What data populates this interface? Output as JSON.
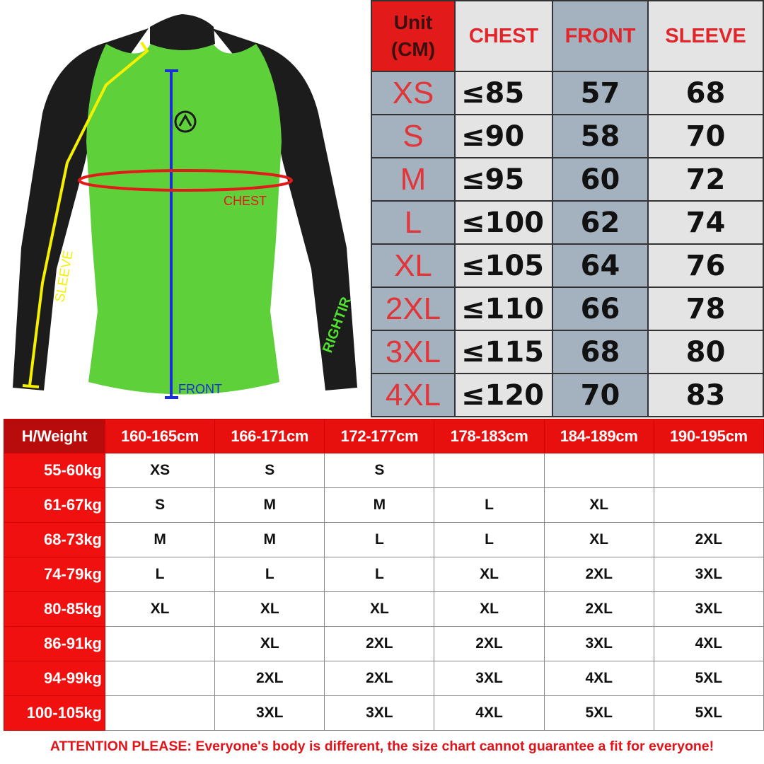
{
  "colors": {
    "red": "#e21a1a",
    "header_gray": "#a3b2be",
    "light_gray": "#e4e4e4",
    "shirt_green": "#5ed13a",
    "shirt_black": "#1c1c1c",
    "sleeve_line": "#f5f000",
    "front_line": "#1a2fd6",
    "chest_line": "#e21a1a"
  },
  "illustration": {
    "chest_label": "CHEST",
    "front_label": "FRONT",
    "sleeve_label": "SLEEVE",
    "logo_text": "RIGHTIR"
  },
  "size_table": {
    "headers": {
      "unit": "Unit (CM)",
      "chest": "CHEST",
      "front": "FRONT",
      "sleeve": "SLEEVE"
    },
    "rows": [
      {
        "size": "XS",
        "chest": "≤85",
        "front": "57",
        "sleeve": "68"
      },
      {
        "size": "S",
        "chest": "≤90",
        "front": "58",
        "sleeve": "70"
      },
      {
        "size": "M",
        "chest": "≤95",
        "front": "60",
        "sleeve": "72"
      },
      {
        "size": "L",
        "chest": "≤100",
        "front": "62",
        "sleeve": "74"
      },
      {
        "size": "XL",
        "chest": "≤105",
        "front": "64",
        "sleeve": "76"
      },
      {
        "size": "2XL",
        "chest": "≤110",
        "front": "66",
        "sleeve": "78"
      },
      {
        "size": "3XL",
        "chest": "≤115",
        "front": "68",
        "sleeve": "80"
      },
      {
        "size": "4XL",
        "chest": "≤120",
        "front": "70",
        "sleeve": "83"
      }
    ]
  },
  "fit_table": {
    "corner": "H/Weight",
    "heights": [
      "160-165cm",
      "166-171cm",
      "172-177cm",
      "178-183cm",
      "184-189cm",
      "190-195cm"
    ],
    "rows": [
      {
        "weight": "55-60kg",
        "sizes": [
          "XS",
          "S",
          "S",
          "",
          "",
          ""
        ]
      },
      {
        "weight": "61-67kg",
        "sizes": [
          "S",
          "M",
          "M",
          "L",
          "XL",
          ""
        ]
      },
      {
        "weight": "68-73kg",
        "sizes": [
          "M",
          "M",
          "L",
          "L",
          "XL",
          "2XL"
        ]
      },
      {
        "weight": "74-79kg",
        "sizes": [
          "L",
          "L",
          "L",
          "XL",
          "2XL",
          "3XL"
        ]
      },
      {
        "weight": "80-85kg",
        "sizes": [
          "XL",
          "XL",
          "XL",
          "XL",
          "2XL",
          "3XL"
        ]
      },
      {
        "weight": "86-91kg",
        "sizes": [
          "",
          "XL",
          "2XL",
          "2XL",
          "3XL",
          "4XL"
        ]
      },
      {
        "weight": "94-99kg",
        "sizes": [
          "",
          "2XL",
          "2XL",
          "3XL",
          "4XL",
          "5XL"
        ]
      },
      {
        "weight": "100-105kg",
        "sizes": [
          "",
          "3XL",
          "3XL",
          "4XL",
          "5XL",
          "5XL"
        ]
      }
    ]
  },
  "warning": "ATTENTION PLEASE: Everyone's body is different, the size chart cannot guarantee a fit for everyone!"
}
